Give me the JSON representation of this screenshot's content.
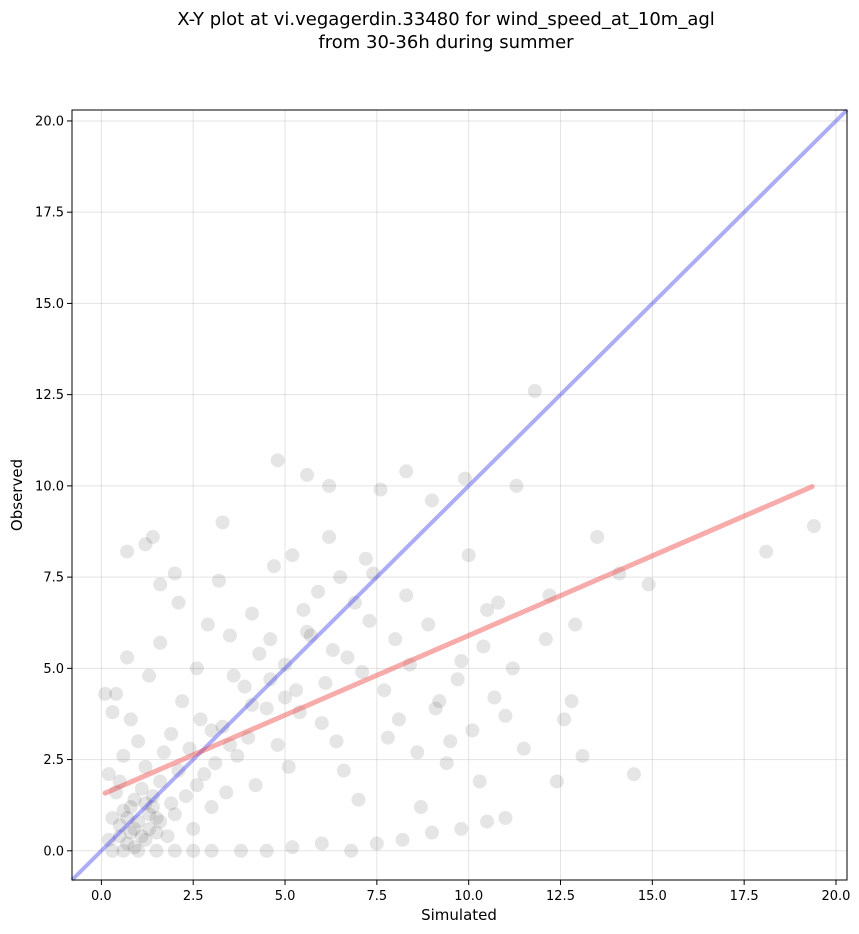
{
  "chart_data": {
    "type": "scatter",
    "title_line1": "X-Y plot at vi.vegagerdin.33480 for wind_speed_at_10m_agl",
    "title_line2": "from 30-36h during summer",
    "xlabel": "Simulated",
    "ylabel": "Observed",
    "xlim": [
      -0.8,
      20.3
    ],
    "ylim": [
      -0.8,
      20.3
    ],
    "x_ticks": [
      0.0,
      2.5,
      5.0,
      7.5,
      10.0,
      12.5,
      15.0,
      17.5,
      20.0
    ],
    "y_ticks": [
      0.0,
      2.5,
      5.0,
      7.5,
      10.0,
      12.5,
      15.0,
      17.5,
      20.0
    ],
    "x_tick_labels": [
      "0.0",
      "2.5",
      "5.0",
      "7.5",
      "10.0",
      "12.5",
      "15.0",
      "17.5",
      "20.0"
    ],
    "y_tick_labels": [
      "0.0",
      "2.5",
      "5.0",
      "7.5",
      "10.0",
      "12.5",
      "15.0",
      "17.5",
      "20.0"
    ],
    "grid": true,
    "marker_color": "#000000",
    "marker_alpha": 0.1,
    "identity_line": {
      "x": [
        -0.8,
        20.3
      ],
      "y": [
        -0.8,
        20.3
      ],
      "color": "#4a4aeb",
      "alpha": 0.45
    },
    "fit_line": {
      "x": [
        0.1,
        19.35
      ],
      "y": [
        1.58,
        9.98
      ],
      "color": "#ee4444",
      "alpha": 0.45
    },
    "points": [
      [
        0.8,
        0.5
      ],
      [
        1.0,
        0.8
      ],
      [
        1.2,
        0.3
      ],
      [
        0.6,
        1.1
      ],
      [
        1.5,
        0.9
      ],
      [
        0.9,
        1.4
      ],
      [
        1.3,
        0.6
      ],
      [
        0.7,
        0.2
      ],
      [
        1.1,
        1.7
      ],
      [
        0.5,
        0.7
      ],
      [
        1.8,
        0.4
      ],
      [
        1.4,
        1.2
      ],
      [
        0.3,
        0.9
      ],
      [
        2.0,
        1.0
      ],
      [
        0.9,
        0.1
      ],
      [
        1.6,
        1.9
      ],
      [
        0.4,
        1.6
      ],
      [
        1.2,
        2.3
      ],
      [
        2.3,
        1.5
      ],
      [
        0.6,
        2.6
      ],
      [
        1.7,
        2.7
      ],
      [
        2.5,
        0.6
      ],
      [
        0.2,
        0.3
      ],
      [
        1.0,
        3.0
      ],
      [
        2.8,
        2.1
      ],
      [
        0.8,
        3.6
      ],
      [
        1.9,
        3.2
      ],
      [
        3.0,
        1.2
      ],
      [
        0.4,
        4.3
      ],
      [
        2.2,
        4.1
      ],
      [
        1.3,
        4.8
      ],
      [
        3.3,
        3.4
      ],
      [
        2.6,
        5.0
      ],
      [
        3.7,
        2.6
      ],
      [
        0.7,
        5.3
      ],
      [
        1.6,
        5.7
      ],
      [
        3.9,
        4.5
      ],
      [
        4.2,
        1.8
      ],
      [
        2.9,
        6.2
      ],
      [
        4.5,
        3.9
      ],
      [
        3.5,
        5.9
      ],
      [
        5.0,
        5.1
      ],
      [
        4.8,
        2.9
      ],
      [
        2.1,
        6.8
      ],
      [
        5.3,
        4.4
      ],
      [
        4.1,
        6.5
      ],
      [
        5.6,
        6.0
      ],
      [
        3.2,
        7.4
      ],
      [
        6.0,
        3.5
      ],
      [
        5.9,
        7.1
      ],
      [
        6.3,
        5.5
      ],
      [
        4.7,
        7.8
      ],
      [
        6.6,
        2.2
      ],
      [
        6.9,
        6.8
      ],
      [
        5.2,
        8.1
      ],
      [
        7.1,
        4.9
      ],
      [
        7.4,
        7.6
      ],
      [
        6.2,
        8.6
      ],
      [
        7.8,
        3.1
      ],
      [
        8.0,
        5.8
      ],
      [
        7.6,
        9.9
      ],
      [
        8.3,
        7.0
      ],
      [
        8.6,
        2.7
      ],
      [
        8.9,
        6.2
      ],
      [
        9.2,
        4.1
      ],
      [
        9.0,
        9.6
      ],
      [
        9.5,
        3.0
      ],
      [
        9.8,
        5.2
      ],
      [
        10.0,
        8.1
      ],
      [
        10.3,
        1.9
      ],
      [
        10.5,
        6.6
      ],
      [
        10.7,
        4.2
      ],
      [
        11.0,
        3.7
      ],
      [
        11.3,
        10.0
      ],
      [
        11.5,
        2.8
      ],
      [
        11.8,
        12.6
      ],
      [
        12.2,
        7.0
      ],
      [
        12.4,
        1.9
      ],
      [
        12.6,
        3.6
      ],
      [
        12.9,
        6.2
      ],
      [
        13.1,
        2.6
      ],
      [
        13.5,
        8.6
      ],
      [
        14.1,
        7.6
      ],
      [
        14.5,
        2.1
      ],
      [
        14.9,
        7.3
      ],
      [
        18.1,
        8.2
      ],
      [
        19.4,
        8.9
      ],
      [
        4.8,
        10.7
      ],
      [
        5.6,
        10.3
      ],
      [
        6.2,
        10.0
      ],
      [
        8.3,
        10.4
      ],
      [
        9.9,
        10.2
      ],
      [
        0.7,
        8.2
      ],
      [
        1.2,
        8.4
      ],
      [
        1.4,
        8.6
      ],
      [
        3.3,
        9.0
      ],
      [
        2.0,
        7.6
      ],
      [
        1.6,
        7.3
      ],
      [
        0.3,
        0.0
      ],
      [
        0.6,
        0.0
      ],
      [
        1.0,
        0.0
      ],
      [
        1.5,
        0.0
      ],
      [
        2.0,
        0.0
      ],
      [
        2.5,
        0.0
      ],
      [
        3.0,
        0.0
      ],
      [
        3.8,
        0.0
      ],
      [
        4.5,
        0.0
      ],
      [
        5.2,
        0.1
      ],
      [
        6.0,
        0.2
      ],
      [
        6.8,
        0.0
      ],
      [
        7.5,
        0.2
      ],
      [
        8.2,
        0.3
      ],
      [
        9.0,
        0.5
      ],
      [
        9.8,
        0.6
      ],
      [
        10.5,
        0.8
      ],
      [
        11.0,
        0.9
      ],
      [
        0.2,
        2.1
      ],
      [
        0.1,
        4.3
      ],
      [
        0.3,
        3.8
      ],
      [
        0.5,
        1.9
      ],
      [
        1.9,
        1.3
      ],
      [
        2.4,
        2.8
      ],
      [
        2.7,
        3.6
      ],
      [
        3.1,
        2.4
      ],
      [
        3.4,
        1.6
      ],
      [
        3.6,
        4.8
      ],
      [
        4.0,
        3.1
      ],
      [
        4.3,
        5.4
      ],
      [
        4.6,
        4.7
      ],
      [
        5.1,
        2.3
      ],
      [
        5.4,
        3.8
      ],
      [
        5.7,
        5.9
      ],
      [
        6.1,
        4.6
      ],
      [
        6.4,
        3.0
      ],
      [
        6.7,
        5.3
      ],
      [
        7.0,
        1.4
      ],
      [
        7.3,
        6.3
      ],
      [
        7.7,
        4.4
      ],
      [
        8.1,
        3.6
      ],
      [
        8.4,
        5.1
      ],
      [
        8.7,
        1.2
      ],
      [
        9.1,
        3.9
      ],
      [
        9.4,
        2.4
      ],
      [
        9.7,
        4.7
      ],
      [
        10.1,
        3.3
      ],
      [
        10.4,
        5.6
      ],
      [
        10.8,
        6.8
      ],
      [
        11.2,
        5.0
      ],
      [
        12.1,
        5.8
      ],
      [
        12.8,
        4.1
      ],
      [
        1.1,
        0.4
      ],
      [
        0.9,
        0.6
      ],
      [
        1.3,
        1.0
      ],
      [
        0.7,
        0.9
      ],
      [
        1.5,
        0.5
      ],
      [
        1.2,
        1.3
      ],
      [
        0.8,
        1.2
      ],
      [
        1.6,
        0.8
      ],
      [
        1.4,
        1.5
      ],
      [
        0.5,
        0.4
      ],
      [
        2.1,
        2.2
      ],
      [
        2.6,
        1.8
      ],
      [
        3.0,
        3.3
      ],
      [
        3.5,
        2.9
      ],
      [
        4.1,
        4.0
      ],
      [
        4.6,
        5.8
      ],
      [
        5.0,
        4.2
      ],
      [
        5.5,
        6.6
      ],
      [
        6.5,
        7.5
      ],
      [
        7.2,
        8.0
      ]
    ]
  }
}
